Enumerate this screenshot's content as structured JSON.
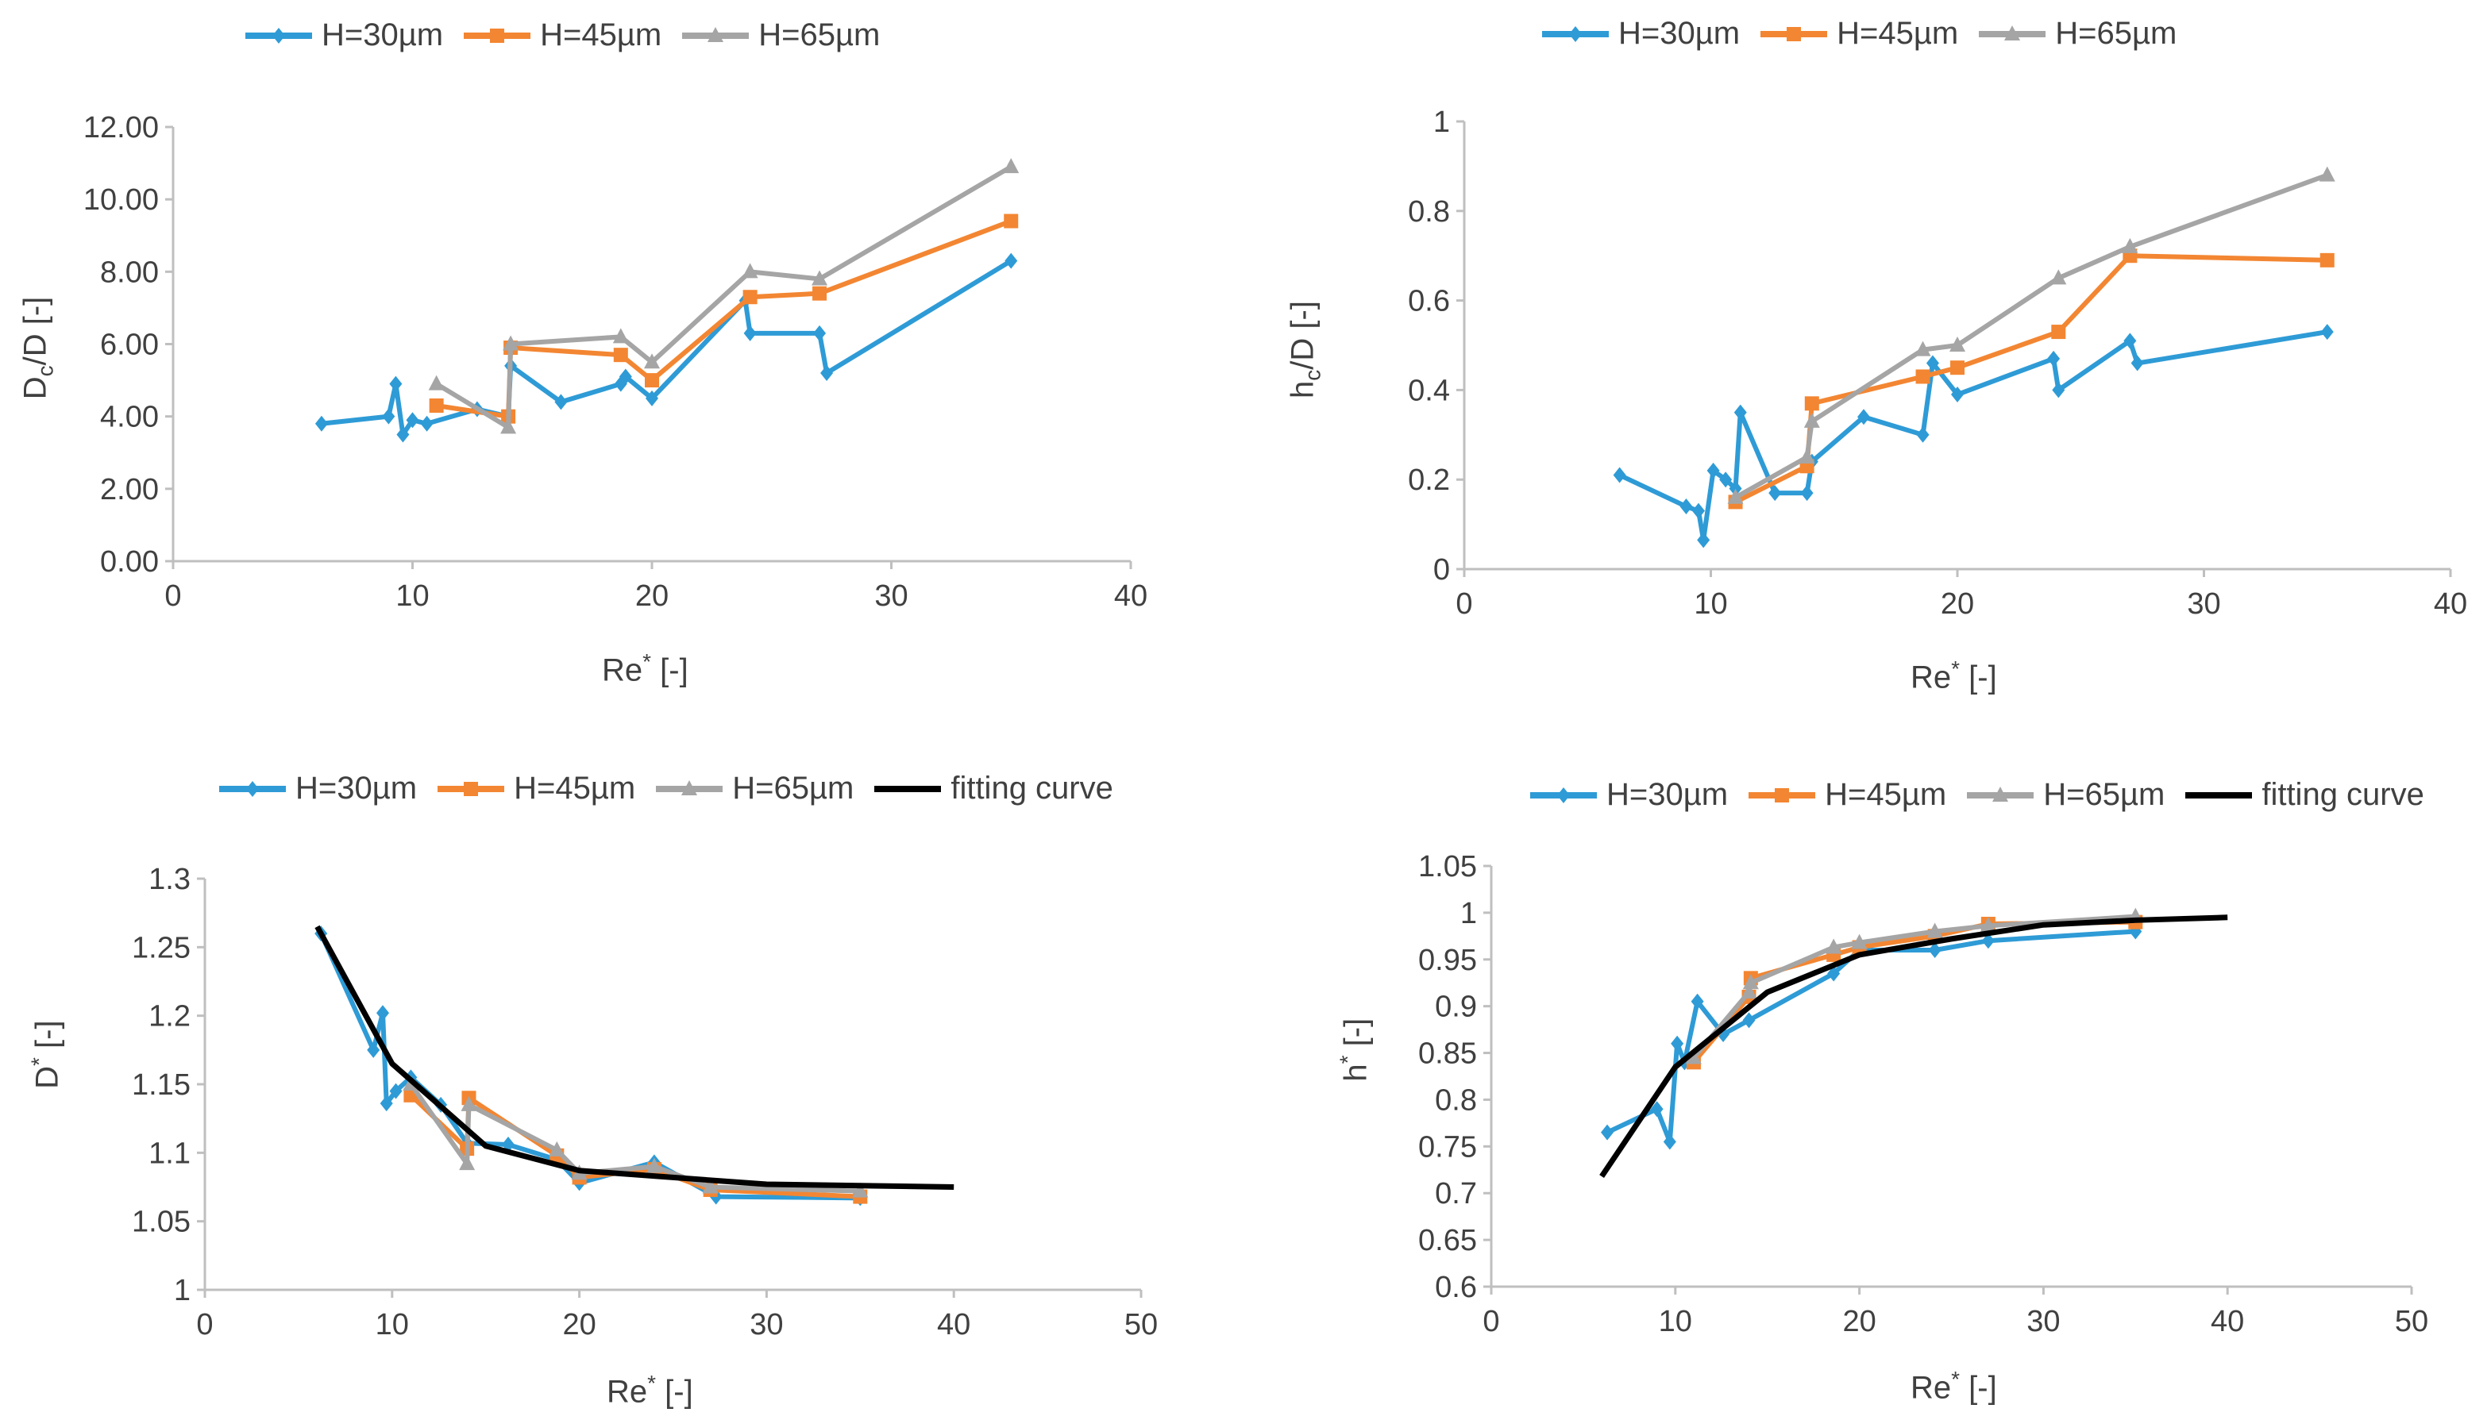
{
  "series_names": [
    "H=30µm",
    "H=45µm",
    "H=65µm",
    "fitting curve"
  ],
  "colors": {
    "H30": "#2E9BD6",
    "H45": "#F38632",
    "H65": "#A5A5A5",
    "fit": "#000000"
  },
  "chart_data": [
    {
      "type": "line",
      "title": "",
      "xlabel": "Re* [-]",
      "ylabel": "Dc/D [-]",
      "xlim": [
        0,
        40
      ],
      "ylim": [
        0,
        12
      ],
      "xticks": [
        "0",
        "10",
        "20",
        "30",
        "40"
      ],
      "yticks": [
        "0.00",
        "2.00",
        "4.00",
        "6.00",
        "8.00",
        "10.00",
        "12.00"
      ],
      "series": [
        {
          "name": "H=30µm",
          "x": [
            6.2,
            9.0,
            9.3,
            9.6,
            10.0,
            10.6,
            12.7,
            14.0,
            14.1,
            16.2,
            18.7,
            18.9,
            20.0,
            23.9,
            24.1,
            27.0,
            27.3,
            35.0
          ],
          "y": [
            3.8,
            4.0,
            4.9,
            3.5,
            3.9,
            3.8,
            4.2,
            4.0,
            5.4,
            4.4,
            4.9,
            5.1,
            4.5,
            7.2,
            6.3,
            6.3,
            5.2,
            8.3
          ]
        },
        {
          "name": "H=45µm",
          "x": [
            11.0,
            14.0,
            14.1,
            18.7,
            20.0,
            24.1,
            27.0,
            35.0
          ],
          "y": [
            4.3,
            4.0,
            5.9,
            5.7,
            5.0,
            7.3,
            7.4,
            9.4
          ]
        },
        {
          "name": "H=65µm",
          "x": [
            11.0,
            14.0,
            14.1,
            18.7,
            20.0,
            24.1,
            27.0,
            35.0
          ],
          "y": [
            4.9,
            3.7,
            6.0,
            6.2,
            5.5,
            8.0,
            7.8,
            10.9
          ]
        }
      ]
    },
    {
      "type": "line",
      "title": "",
      "xlabel": "Re* [-]",
      "ylabel": "hc/D [-]",
      "xlim": [
        0,
        40
      ],
      "ylim": [
        0,
        1
      ],
      "xticks": [
        "0",
        "10",
        "20",
        "30",
        "40"
      ],
      "yticks": [
        "0",
        "0.2",
        "0.4",
        "0.6",
        "0.8",
        "1"
      ],
      "series": [
        {
          "name": "H=30µm",
          "x": [
            6.3,
            9.0,
            9.5,
            9.7,
            10.1,
            10.6,
            11.0,
            11.2,
            12.6,
            13.9,
            14.1,
            16.2,
            18.6,
            19.0,
            20.0,
            23.9,
            24.1,
            27.0,
            27.3,
            35.0
          ],
          "y": [
            0.21,
            0.14,
            0.13,
            0.065,
            0.22,
            0.2,
            0.18,
            0.35,
            0.17,
            0.17,
            0.24,
            0.34,
            0.3,
            0.46,
            0.39,
            0.47,
            0.4,
            0.51,
            0.46,
            0.53
          ]
        },
        {
          "name": "H=45µm",
          "x": [
            11.0,
            13.9,
            14.1,
            18.6,
            20.0,
            24.1,
            27.0,
            35.0
          ],
          "y": [
            0.15,
            0.23,
            0.37,
            0.43,
            0.45,
            0.53,
            0.7,
            0.69
          ]
        },
        {
          "name": "H=65µm",
          "x": [
            11.0,
            13.9,
            14.1,
            18.6,
            20.0,
            24.1,
            27.0,
            35.0
          ],
          "y": [
            0.16,
            0.25,
            0.33,
            0.49,
            0.5,
            0.65,
            0.72,
            0.88
          ]
        }
      ]
    },
    {
      "type": "line",
      "title": "",
      "xlabel": "Re* [-]",
      "ylabel": "D* [-]",
      "xlim": [
        0,
        50
      ],
      "ylim": [
        1,
        1.3
      ],
      "xticks": [
        "0",
        "10",
        "20",
        "30",
        "40",
        "50"
      ],
      "yticks": [
        "1",
        "1.05",
        "1.1",
        "1.15",
        "1.2",
        "1.25",
        "1.3"
      ],
      "series": [
        {
          "name": "H=30µm",
          "x": [
            6.2,
            9.0,
            9.5,
            9.7,
            10.2,
            11.0,
            12.6,
            14.0,
            16.2,
            18.8,
            20.0,
            24.0,
            27.3,
            35.0
          ],
          "y": [
            1.26,
            1.175,
            1.202,
            1.136,
            1.145,
            1.155,
            1.135,
            1.107,
            1.106,
            1.095,
            1.078,
            1.093,
            1.068,
            1.067
          ]
        },
        {
          "name": "H=45µm",
          "x": [
            11.0,
            14.0,
            14.1,
            18.8,
            20.0,
            24.0,
            27.0,
            35.0
          ],
          "y": [
            1.142,
            1.103,
            1.14,
            1.098,
            1.082,
            1.088,
            1.073,
            1.068
          ]
        },
        {
          "name": "H=65µm",
          "x": [
            11.0,
            14.0,
            14.1,
            18.8,
            20.0,
            24.0,
            27.0,
            35.0
          ],
          "y": [
            1.15,
            1.092,
            1.135,
            1.102,
            1.085,
            1.09,
            1.075,
            1.072
          ]
        },
        {
          "name": "fitting curve",
          "x": [
            6,
            10,
            15,
            20,
            25,
            30,
            35,
            40
          ],
          "y": [
            1.265,
            1.165,
            1.105,
            1.087,
            1.082,
            1.077,
            1.076,
            1.075
          ]
        }
      ]
    },
    {
      "type": "line",
      "title": "",
      "xlabel": "Re* [-]",
      "ylabel": "h* [-]",
      "xlim": [
        0,
        50
      ],
      "ylim": [
        0.6,
        1.05
      ],
      "xticks": [
        "0",
        "10",
        "20",
        "30",
        "40",
        "50"
      ],
      "yticks": [
        "0.6",
        "0.65",
        "0.7",
        "0.75",
        "0.8",
        "0.85",
        "0.9",
        "0.95",
        "1",
        "1.05"
      ],
      "series": [
        {
          "name": "H=30µm",
          "x": [
            6.3,
            9.0,
            9.7,
            10.1,
            10.5,
            11.2,
            12.6,
            14.0,
            18.6,
            20.0,
            24.1,
            27.0,
            35.0
          ],
          "y": [
            0.765,
            0.79,
            0.755,
            0.86,
            0.84,
            0.905,
            0.87,
            0.885,
            0.935,
            0.96,
            0.96,
            0.97,
            0.98
          ]
        },
        {
          "name": "H=45µm",
          "x": [
            11.0,
            14.0,
            14.1,
            18.6,
            20.0,
            24.1,
            27.0,
            35.0
          ],
          "y": [
            0.84,
            0.91,
            0.93,
            0.955,
            0.963,
            0.975,
            0.988,
            0.99
          ]
        },
        {
          "name": "H=65µm",
          "x": [
            11.0,
            14.0,
            14.1,
            18.6,
            20.0,
            24.1,
            27.0,
            35.0
          ],
          "y": [
            0.845,
            0.915,
            0.925,
            0.963,
            0.968,
            0.98,
            0.986,
            0.996
          ]
        },
        {
          "name": "fitting curve",
          "x": [
            6,
            10,
            15,
            20,
            25,
            30,
            35,
            40
          ],
          "y": [
            0.718,
            0.835,
            0.915,
            0.955,
            0.972,
            0.987,
            0.992,
            0.995
          ]
        }
      ]
    }
  ]
}
